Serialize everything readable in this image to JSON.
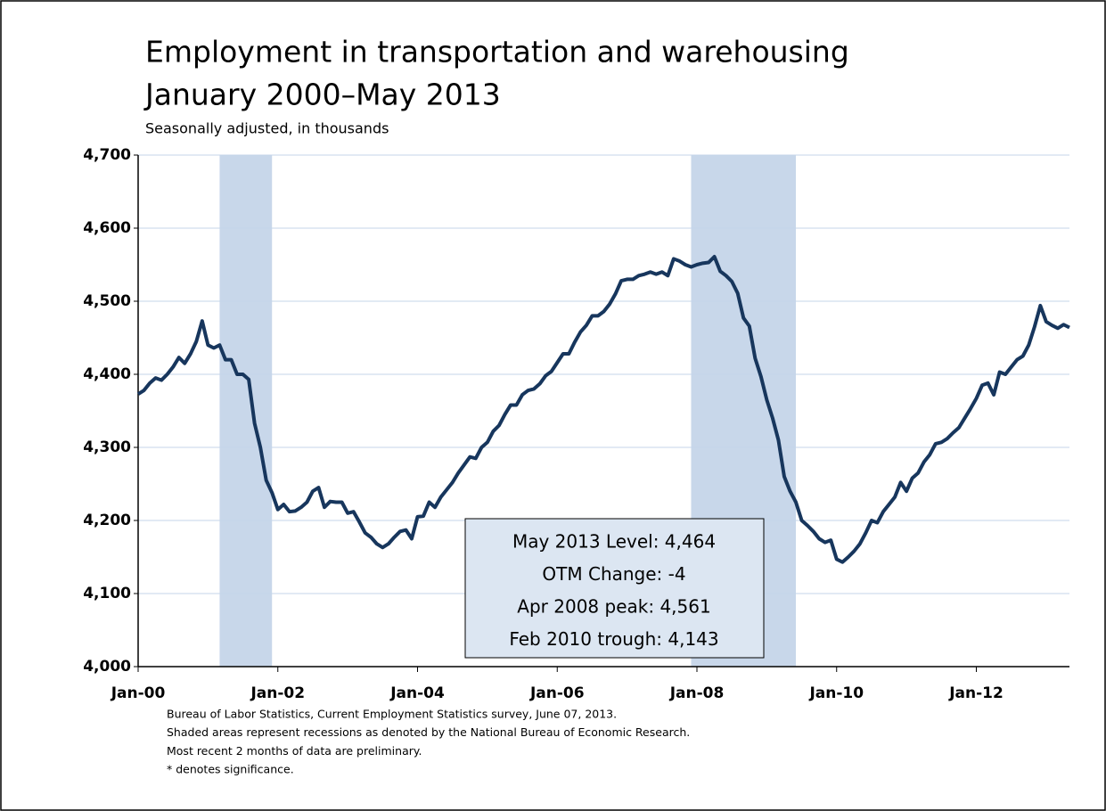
{
  "chart_data": {
    "type": "line",
    "title": [
      "Employment in transportation and warehousing",
      "January 2000–May 2013"
    ],
    "subtitle": "Seasonally adjusted, in thousands",
    "categories": [
      "Jan-00",
      null,
      null,
      null,
      null,
      null,
      null,
      null,
      null,
      null,
      null,
      null,
      null,
      null,
      null,
      null,
      null,
      null,
      null,
      null,
      null,
      null,
      null,
      null,
      "Jan-02",
      null,
      null,
      null,
      null,
      null,
      null,
      null,
      null,
      null,
      null,
      null,
      null,
      null,
      null,
      null,
      null,
      null,
      null,
      null,
      null,
      null,
      null,
      null,
      "Jan-04",
      null,
      null,
      null,
      null,
      null,
      null,
      null,
      null,
      null,
      null,
      null,
      null,
      null,
      null,
      null,
      null,
      null,
      null,
      null,
      null,
      null,
      null,
      null,
      "Jan-06",
      null,
      null,
      null,
      null,
      null,
      null,
      null,
      null,
      null,
      null,
      null,
      null,
      null,
      null,
      null,
      null,
      null,
      null,
      null,
      null,
      null,
      null,
      null,
      "Jan-08",
      null,
      null,
      null,
      null,
      null,
      null,
      null,
      null,
      null,
      null,
      null,
      null,
      null,
      null,
      null,
      null,
      null,
      null,
      null,
      null,
      null,
      null,
      null,
      "Jan-10",
      null,
      null,
      null,
      null,
      null,
      null,
      null,
      null,
      null,
      null,
      null,
      null,
      null,
      null,
      null,
      null,
      null,
      null,
      null,
      null,
      null,
      null,
      null,
      "Jan-12",
      null,
      null,
      null,
      null,
      null,
      null,
      null,
      null,
      null,
      null,
      null,
      null,
      null,
      null,
      null,
      null
    ],
    "values": [
      4373,
      4378,
      4388,
      4395,
      4392,
      4400,
      4410,
      4423,
      4415,
      4428,
      4445,
      4473,
      4440,
      4436,
      4440,
      4420,
      4420,
      4400,
      4400,
      4393,
      4333,
      4300,
      4255,
      4238,
      4215,
      4222,
      4212,
      4213,
      4218,
      4225,
      4240,
      4245,
      4218,
      4226,
      4225,
      4225,
      4210,
      4212,
      4198,
      4183,
      4177,
      4168,
      4163,
      4168,
      4177,
      4185,
      4187,
      4175,
      4205,
      4206,
      4225,
      4218,
      4232,
      4242,
      4252,
      4265,
      4276,
      4287,
      4285,
      4300,
      4307,
      4322,
      4330,
      4345,
      4358,
      4358,
      4372,
      4378,
      4380,
      4387,
      4398,
      4404,
      4416,
      4428,
      4428,
      4444,
      4458,
      4467,
      4480,
      4480,
      4486,
      4496,
      4510,
      4528,
      4530,
      4530,
      4535,
      4537,
      4540,
      4537,
      4540,
      4535,
      4558,
      4555,
      4550,
      4547,
      4550,
      4552,
      4553,
      4561,
      4541,
      4535,
      4527,
      4511,
      4477,
      4466,
      4422,
      4397,
      4365,
      4340,
      4310,
      4260,
      4240,
      4225,
      4200,
      4193,
      4185,
      4175,
      4170,
      4173,
      4147,
      4143,
      4150,
      4158,
      4168,
      4183,
      4200,
      4197,
      4212,
      4222,
      4232,
      4252,
      4240,
      4258,
      4265,
      4280,
      4290,
      4305,
      4307,
      4312,
      4320,
      4327,
      4340,
      4353,
      4367,
      4385,
      4388,
      4372,
      4403,
      4400,
      4410,
      4420,
      4425,
      4440,
      4465,
      4494,
      4472,
      4467,
      4463,
      4468,
      4464
    ],
    "color": "#17365d",
    "recessions": [
      [
        14,
        23
      ],
      [
        95,
        113
      ]
    ],
    "recession_color": "#c8d7ea",
    "ylim": [
      4000,
      4700
    ],
    "yticks": [
      {
        "value": 4000,
        "label": "4,000"
      },
      {
        "value": 4100,
        "label": "4,100"
      },
      {
        "value": 4200,
        "label": "4,200"
      },
      {
        "value": 4300,
        "label": "4,300"
      },
      {
        "value": 4400,
        "label": "4,400"
      },
      {
        "value": 4500,
        "label": "4,500"
      },
      {
        "value": 4600,
        "label": "4,600"
      },
      {
        "value": 4700,
        "label": "4,700"
      }
    ],
    "grid": true,
    "annotation": [
      "May 2013 Level:  4,464",
      "OTM Change:  -4",
      "Apr 2008 peak:  4,561",
      "Feb 2010 trough:  4,143"
    ],
    "notes": [
      "Bureau of Labor Statistics, Current Employment Statistics survey, June 07, 2013.",
      "Shaded areas represent recessions as denoted by the National Bureau of Economic Research.",
      "Most recent 2 months of data are preliminary.",
      "* denotes significance."
    ]
  }
}
